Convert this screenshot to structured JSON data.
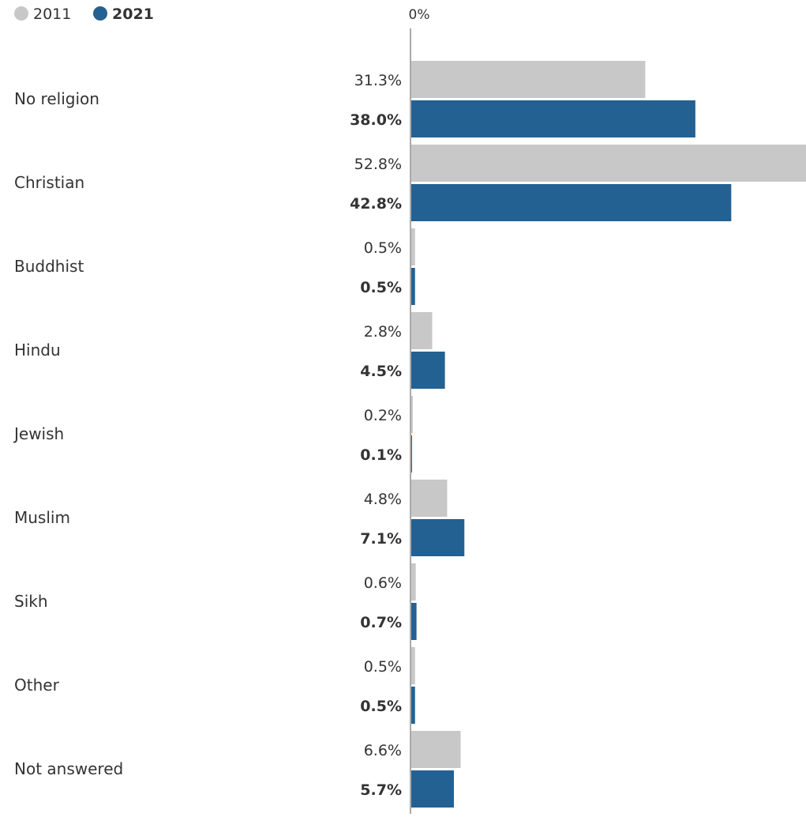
{
  "chart_data": {
    "type": "bar",
    "orientation": "horizontal",
    "categories": [
      "No religion",
      "Christian",
      "Buddhist",
      "Hindu",
      "Jewish",
      "Muslim",
      "Sikh",
      "Other",
      "Not answered"
    ],
    "series": [
      {
        "name": "2011",
        "color": "#c8c8c8",
        "values": [
          31.3,
          52.8,
          0.5,
          2.8,
          0.2,
          4.8,
          0.6,
          0.5,
          6.6
        ],
        "labels": [
          "31.3%",
          "52.8%",
          "0.5%",
          "2.8%",
          "0.2%",
          "4.8%",
          "0.6%",
          "0.5%",
          "6.6%"
        ]
      },
      {
        "name": "2021",
        "color": "#236192",
        "values": [
          38.0,
          42.8,
          0.5,
          4.5,
          0.1,
          7.1,
          0.7,
          0.5,
          5.7
        ],
        "labels": [
          "38.0%",
          "42.8%",
          "0.5%",
          "4.5%",
          "0.1%",
          "7.1%",
          "0.7%",
          "0.5%",
          "5.7%"
        ]
      }
    ],
    "axis_label": "0%",
    "xlim": [
      0,
      52.8
    ],
    "legend": {
      "position": "top-left",
      "items": [
        {
          "label": "2011",
          "color": "#c8c8c8",
          "bold": false
        },
        {
          "label": "2021",
          "color": "#236192",
          "bold": true
        }
      ]
    },
    "grid": false
  }
}
